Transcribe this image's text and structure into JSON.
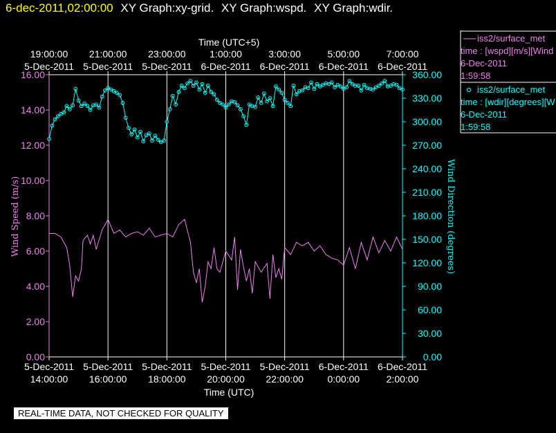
{
  "header": {
    "timestamp": "6-dec-2011,02:00:00",
    "graphs": [
      "XY Graph:xy-grid.",
      "XY Graph:wspd.",
      "XY Graph:wdir."
    ]
  },
  "footer": {
    "quality_label": "REAL-TIME DATA, NOT CHECKED FOR QUALITY"
  },
  "legend": [
    {
      "marker": "line",
      "lines": [
        "iss2/surface_met",
        "time : [wspd][m/s][Wind",
        "6-Dec-2011",
        "1:59:58"
      ],
      "color": "#ee82ee"
    },
    {
      "marker": "circle",
      "lines": [
        "iss2/surface_met",
        "time : [wdir][degrees][W",
        "6-Dec-2011",
        "1:59:58"
      ],
      "color": "#00ffff"
    }
  ],
  "chart_data": {
    "type": "line",
    "x_title_bottom": "Time (UTC)",
    "x_title_top": "Time (UTC+5)",
    "ylabel_left": "Wind Speed (m/s)",
    "ylabel_right": "Wind Direction (degrees)",
    "x_hours_range": [
      14,
      26
    ],
    "bottom_ticks": [
      {
        "h": 14,
        "date": "5-Dec-2011",
        "time": "14:00:00"
      },
      {
        "h": 16,
        "date": "5-Dec-2011",
        "time": "16:00:00"
      },
      {
        "h": 18,
        "date": "5-Dec-2011",
        "time": "18:00:00"
      },
      {
        "h": 20,
        "date": "5-Dec-2011",
        "time": "20:00:00"
      },
      {
        "h": 22,
        "date": "5-Dec-2011",
        "time": "22:00:00"
      },
      {
        "h": 24,
        "date": "6-Dec-2011",
        "time": "0:00:00"
      },
      {
        "h": 26,
        "date": "6-Dec-2011",
        "time": "2:00:00"
      }
    ],
    "top_ticks": [
      {
        "h": 14,
        "time": "19:00:00",
        "date": "5-Dec-2011"
      },
      {
        "h": 16,
        "time": "21:00:00",
        "date": "5-Dec-2011"
      },
      {
        "h": 18,
        "time": "23:00:00",
        "date": "5-Dec-2011"
      },
      {
        "h": 20,
        "time": "1:00:00",
        "date": "6-Dec-2011"
      },
      {
        "h": 22,
        "time": "3:00:00",
        "date": "6-Dec-2011"
      },
      {
        "h": 24,
        "time": "5:00:00",
        "date": "6-Dec-2011"
      },
      {
        "h": 26,
        "time": "7:00:00",
        "date": "6-Dec-2011"
      }
    ],
    "y_left": {
      "range": [
        0,
        16
      ],
      "ticks": [
        "0.00",
        "2.00",
        "4.00",
        "6.00",
        "8.00",
        "10.00",
        "12.00",
        "14.00",
        "16.00"
      ]
    },
    "y_right": {
      "range": [
        0,
        360
      ],
      "ticks": [
        "0.00",
        "30.00",
        "60.00",
        "90.00",
        "120.00",
        "150.00",
        "180.00",
        "210.00",
        "240.00",
        "270.00",
        "300.00",
        "330.00",
        "360.00"
      ]
    },
    "grid_x": true,
    "series": [
      {
        "name": "iss2/surface_met",
        "axis": "left",
        "color": "#ee82ee",
        "x": [
          14.0,
          14.2,
          14.4,
          14.6,
          14.7,
          14.8,
          14.9,
          15.0,
          15.1,
          15.15,
          15.3,
          15.4,
          15.5,
          15.6,
          15.8,
          16.0,
          16.2,
          16.4,
          16.6,
          16.8,
          17.0,
          17.2,
          17.4,
          17.6,
          17.8,
          18.0,
          18.2,
          18.4,
          18.6,
          18.8,
          18.9,
          19.0,
          19.1,
          19.2,
          19.3,
          19.4,
          19.5,
          19.6,
          19.7,
          19.8,
          20.0,
          20.2,
          20.3,
          20.4,
          20.5,
          20.6,
          20.7,
          20.8,
          20.9,
          21.0,
          21.2,
          21.4,
          21.5,
          21.6,
          21.7,
          21.8,
          21.9,
          22.0,
          22.2,
          22.4,
          22.6,
          22.8,
          23.0,
          23.2,
          23.4,
          23.6,
          23.8,
          24.0,
          24.2,
          24.4,
          24.6,
          24.8,
          25.0,
          25.2,
          25.4,
          25.6,
          25.8,
          26.0
        ],
        "y": [
          7.0,
          7.0,
          6.8,
          6.2,
          5.2,
          3.4,
          4.6,
          4.3,
          5.0,
          6.6,
          6.9,
          6.4,
          6.9,
          6.1,
          7.2,
          7.8,
          7.0,
          7.2,
          6.8,
          7.0,
          7.1,
          6.9,
          7.3,
          6.8,
          6.9,
          7.0,
          6.8,
          7.5,
          7.8,
          6.5,
          4.8,
          4.2,
          5.0,
          3.1,
          4.0,
          5.4,
          5.0,
          6.2,
          5.0,
          4.8,
          6.0,
          5.5,
          6.8,
          3.8,
          6.1,
          5.1,
          4.3,
          5.0,
          3.6,
          5.4,
          4.8,
          5.3,
          3.3,
          5.8,
          4.5,
          5.0,
          4.4,
          6.2,
          5.8,
          6.5,
          6.3,
          6.5,
          6.0,
          6.3,
          5.8,
          5.6,
          5.5,
          5.2,
          6.2,
          5.0,
          6.5,
          5.5,
          6.8,
          5.9,
          6.6,
          6.0,
          6.8,
          6.1
        ]
      },
      {
        "name": "iss2/surface_met",
        "axis": "right",
        "color": "#00ffff",
        "x": [
          14.0,
          14.1,
          14.2,
          14.3,
          14.4,
          14.5,
          14.6,
          14.7,
          14.8,
          14.9,
          15.0,
          15.1,
          15.2,
          15.3,
          15.4,
          15.5,
          15.6,
          15.7,
          15.8,
          15.9,
          16.0,
          16.1,
          16.2,
          16.3,
          16.4,
          16.5,
          16.6,
          16.7,
          16.8,
          16.9,
          17.0,
          17.1,
          17.2,
          17.3,
          17.4,
          17.5,
          17.6,
          17.7,
          17.8,
          17.9,
          18.0,
          18.1,
          18.2,
          18.3,
          18.4,
          18.5,
          18.6,
          18.7,
          18.8,
          18.9,
          19.0,
          19.1,
          19.2,
          19.3,
          19.4,
          19.5,
          19.6,
          19.7,
          19.8,
          19.9,
          20.0,
          20.1,
          20.2,
          20.3,
          20.4,
          20.5,
          20.6,
          20.7,
          20.8,
          20.9,
          21.0,
          21.1,
          21.2,
          21.3,
          21.4,
          21.5,
          21.6,
          21.7,
          21.8,
          21.9,
          22.0,
          22.1,
          22.2,
          22.3,
          22.4,
          22.5,
          22.6,
          22.7,
          22.8,
          22.9,
          23.0,
          23.1,
          23.2,
          23.3,
          23.4,
          23.5,
          23.6,
          23.7,
          23.8,
          23.9,
          24.0,
          24.1,
          24.2,
          24.3,
          24.4,
          24.5,
          24.6,
          24.7,
          24.8,
          24.9,
          25.0,
          25.1,
          25.2,
          25.3,
          25.4,
          25.5,
          25.6,
          25.7,
          25.8,
          25.9,
          26.0
        ],
        "y": [
          278,
          295,
          303,
          307,
          310,
          312,
          320,
          316,
          321,
          342,
          327,
          320,
          323,
          320,
          315,
          321,
          322,
          318,
          332,
          340,
          343,
          341,
          339,
          337,
          334,
          324,
          305,
          292,
          284,
          290,
          280,
          287,
          275,
          283,
          285,
          276,
          282,
          277,
          274,
          276,
          300,
          316,
          333,
          322,
          338,
          346,
          343,
          349,
          352,
          346,
          350,
          341,
          348,
          337,
          346,
          338,
          335,
          328,
          324,
          322,
          318,
          322,
          326,
          325,
          321,
          316,
          307,
          296,
          322,
          320,
          319,
          331,
          324,
          336,
          326,
          330,
          320,
          345,
          341,
          337,
          328,
          324,
          320,
          346,
          335,
          339,
          340,
          344,
          343,
          350,
          342,
          348,
          345,
          347,
          349,
          348,
          350,
          344,
          347,
          345,
          342,
          344,
          352,
          348,
          346,
          346,
          340,
          347,
          343,
          342,
          341,
          344,
          346,
          349,
          352,
          345,
          346,
          348,
          347,
          343,
          341
        ]
      }
    ]
  }
}
